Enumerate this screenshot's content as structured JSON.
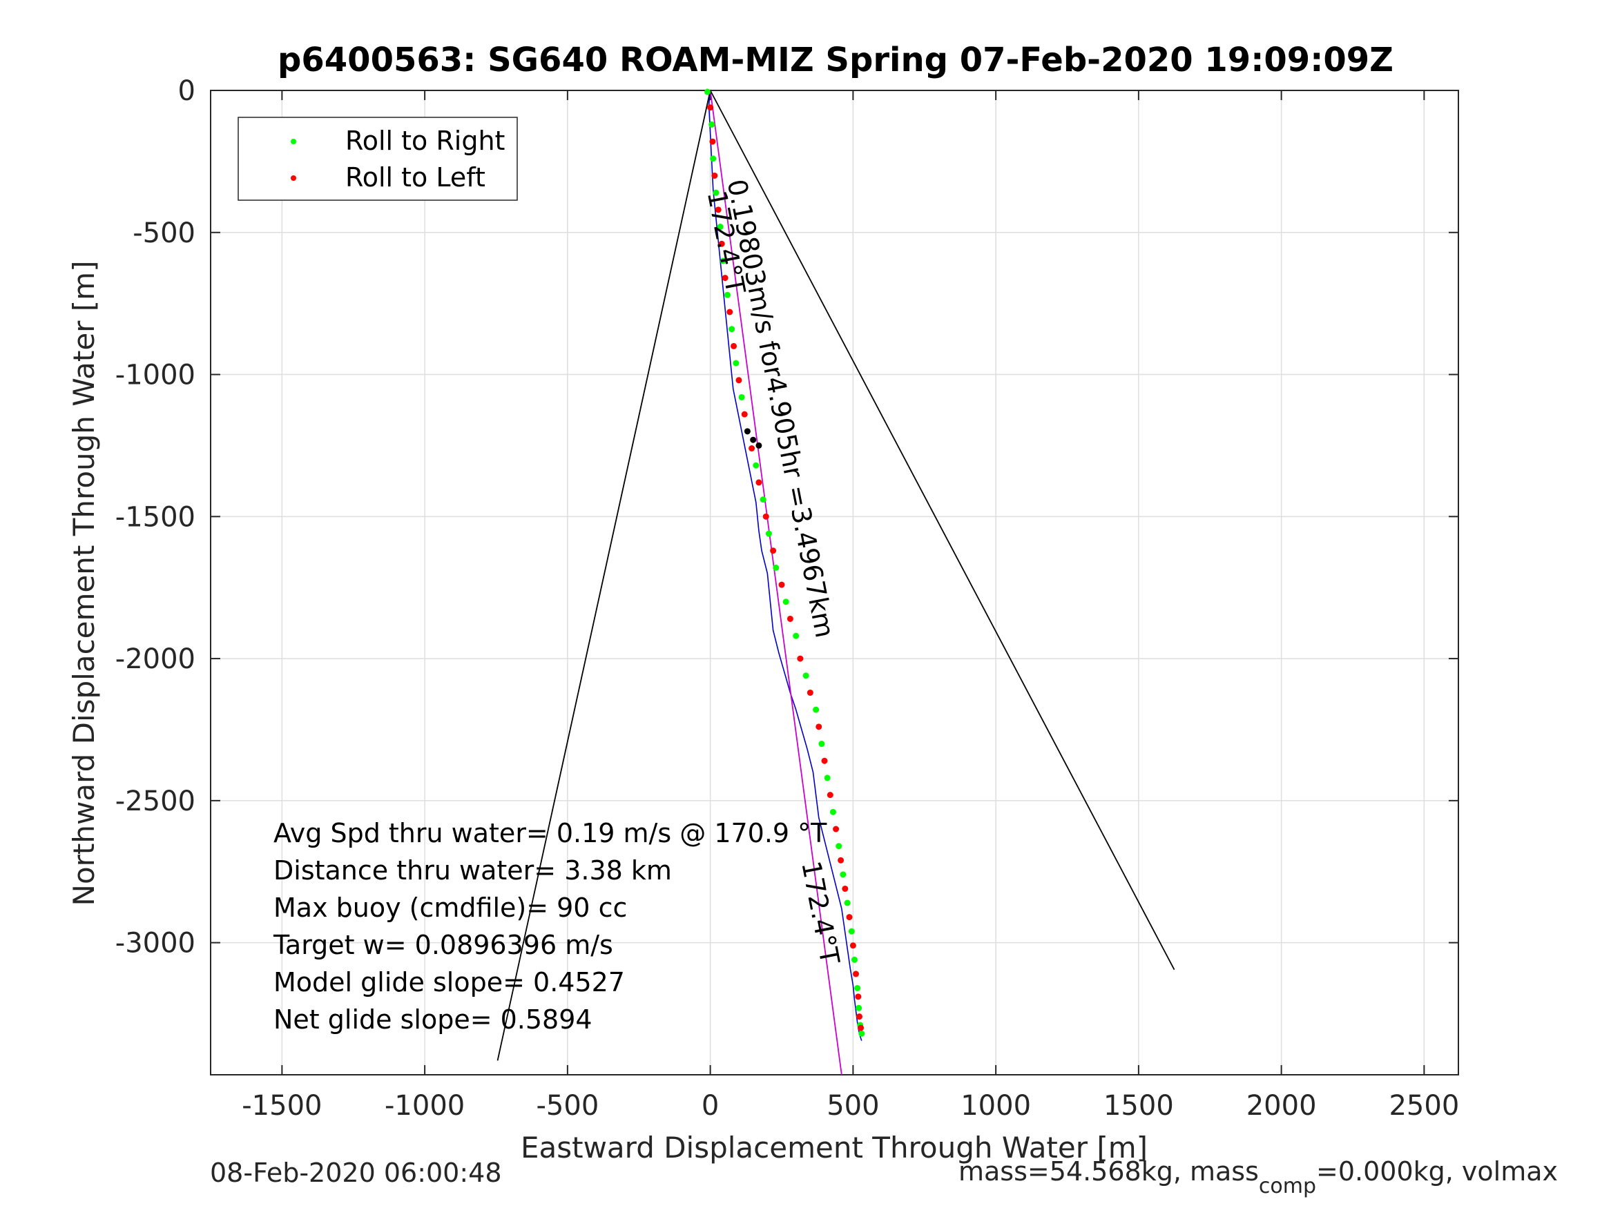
{
  "chart_data": {
    "type": "line",
    "title": "p6400563: SG640 ROAM-MIZ Spring 07-Feb-2020 19:09:09Z",
    "xlabel": "Eastward Displacement Through Water [m]",
    "ylabel": "Northward Displacement Through Water [m]",
    "xlim": [
      -1750,
      2620
    ],
    "ylim": [
      -3465,
      0
    ],
    "grid": true,
    "xticks": [
      -1500,
      -1000,
      -500,
      0,
      500,
      1000,
      1500,
      2000,
      2500
    ],
    "yticks": [
      0,
      -500,
      -1000,
      -1500,
      -2000,
      -2500,
      -3000
    ],
    "legend": {
      "location": "top-left",
      "entries": [
        {
          "label": "Roll to Right",
          "color": "#00ff00"
        },
        {
          "label": "Roll to Left",
          "color": "#ff0000"
        }
      ]
    },
    "series": [
      {
        "color": "#0000cc",
        "x": [
          0,
          -5,
          0,
          5,
          10,
          20,
          30,
          40,
          50,
          60,
          70,
          80,
          90,
          100,
          110,
          120,
          140,
          160,
          170,
          180,
          200,
          210,
          220,
          240,
          260,
          280,
          300,
          320,
          340,
          360,
          370,
          380,
          400,
          420,
          440,
          460,
          470,
          480,
          490,
          500,
          505,
          510,
          515,
          520,
          525,
          530
        ],
        "y": [
          0,
          -50,
          -150,
          -250,
          -350,
          -450,
          -550,
          -650,
          -750,
          -850,
          -950,
          -1050,
          -1100,
          -1150,
          -1200,
          -1250,
          -1350,
          -1450,
          -1550,
          -1620,
          -1700,
          -1800,
          -1900,
          -1980,
          -2050,
          -2120,
          -2180,
          -2250,
          -2320,
          -2400,
          -2480,
          -2560,
          -2640,
          -2720,
          -2800,
          -2880,
          -2950,
          -3020,
          -3090,
          -3150,
          -3200,
          -3240,
          -3280,
          -3310,
          -3330,
          -3345
        ]
      },
      {
        "color": "#cc00cc",
        "x": [
          0,
          460
        ],
        "y": [
          0,
          -3465
        ]
      },
      {
        "color": "#000000",
        "x": [
          0,
          -745
        ],
        "y": [
          0,
          -3415
        ]
      },
      {
        "color": "#000000",
        "x": [
          0,
          1625
        ],
        "y": [
          0,
          -3095
        ]
      }
    ],
    "roll_points": {
      "green_x": [
        -10,
        5,
        10,
        20,
        35,
        45,
        60,
        75,
        90,
        110,
        130,
        160,
        185,
        205,
        230,
        265,
        300,
        335,
        370,
        390,
        410,
        430,
        450,
        465,
        480,
        495,
        505,
        515,
        520,
        525,
        530
      ],
      "green_y": [
        -5,
        -120,
        -240,
        -360,
        -480,
        -600,
        -720,
        -840,
        -960,
        -1080,
        -1200,
        -1320,
        -1440,
        -1560,
        -1680,
        -1800,
        -1920,
        -2060,
        -2180,
        -2300,
        -2420,
        -2540,
        -2660,
        -2760,
        -2860,
        -2960,
        -3060,
        -3160,
        -3230,
        -3290,
        -3320
      ],
      "red_x": [
        0,
        8,
        15,
        28,
        40,
        52,
        68,
        82,
        100,
        120,
        145,
        170,
        195,
        220,
        250,
        280,
        315,
        350,
        380,
        400,
        420,
        440,
        457,
        472,
        487,
        500,
        510,
        518,
        522,
        527
      ],
      "red_y": [
        -60,
        -180,
        -300,
        -420,
        -540,
        -660,
        -780,
        -900,
        -1020,
        -1140,
        -1260,
        -1380,
        -1500,
        -1620,
        -1740,
        -1860,
        -2000,
        -2120,
        -2240,
        -2360,
        -2480,
        -2600,
        -2710,
        -2810,
        -2910,
        -3010,
        -3110,
        -3190,
        -3260,
        -3300
      ]
    },
    "black_points": {
      "x": [
        130,
        150,
        170
      ],
      "y": [
        -1200,
        -1230,
        -1250
      ]
    },
    "annotations": [
      {
        "text": "172.4°T",
        "x": -10,
        "y": -360,
        "rotate": 79
      },
      {
        "text": "0.19803m/s for4.905hr =3.4967km",
        "x": 60,
        "y": -320,
        "rotate": 79
      },
      {
        "text": "172.4°T",
        "x": 320,
        "y": -2720,
        "rotate": 79
      }
    ],
    "stats": [
      "Avg Spd thru water=  0.19 m/s @ 170.9 °T",
      "Distance thru water=  3.38 km",
      "Max buoy (cmdfile)= 90 cc",
      "Target w= 0.0896396 m/s",
      "Model glide slope= 0.4527",
      "Net glide slope= 0.5894"
    ],
    "footer_left": "08-Feb-2020 06:00:48",
    "footer_right_1": "mass=54.568kg, mass",
    "footer_right_sub": "comp",
    "footer_right_2": "=0.000kg, volmax"
  }
}
